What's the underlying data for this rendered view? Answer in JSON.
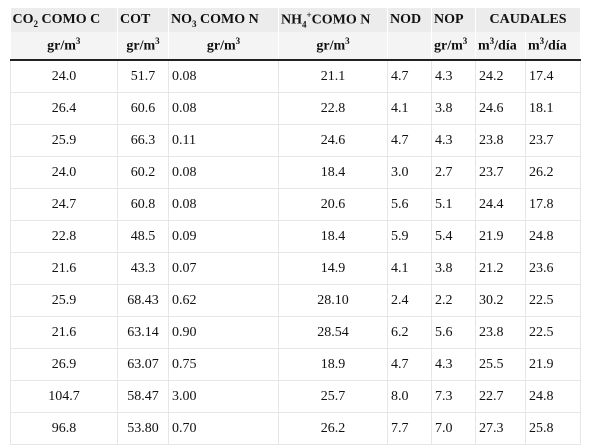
{
  "header": {
    "row1": {
      "co2_prefix": "CO",
      "co2_sub": "2",
      "co2_suffix": " COMO C",
      "cot": "COT",
      "no3_prefix": "NO",
      "no3_sub": "3",
      "no3_suffix": " COMO N",
      "nh4_prefix": "NH",
      "nh4_sub": "4",
      "nh4_sup": "+",
      "nh4_suffix": "COMO N",
      "nod": "NOD",
      "nop": "NOP",
      "caudales": "CAUDALES"
    },
    "row2": {
      "gr_m": "gr/m",
      "cube": "3",
      "m": "m",
      "dia": "/día"
    }
  },
  "rows": [
    [
      "24.0",
      "51.7",
      "0.08",
      "21.1",
      "4.7",
      "4.3",
      "24.2",
      "17.4"
    ],
    [
      "26.4",
      "60.6",
      "0.08",
      "22.8",
      "4.1",
      "3.8",
      "24.6",
      "18.1"
    ],
    [
      "25.9",
      "66.3",
      "0.11",
      "24.6",
      "4.7",
      "4.3",
      "23.8",
      "23.7"
    ],
    [
      "24.0",
      "60.2",
      "0.08",
      "18.4",
      "3.0",
      "2.7",
      "23.7",
      "26.2"
    ],
    [
      "24.7",
      "60.8",
      "0.08",
      "20.6",
      "5.6",
      "5.1",
      "24.4",
      "17.8"
    ],
    [
      "22.8",
      "48.5",
      "0.09",
      "18.4",
      "5.9",
      "5.4",
      "21.9",
      "24.8"
    ],
    [
      "21.6",
      "43.3",
      "0.07",
      "14.9",
      "4.1",
      "3.8",
      "21.2",
      "23.6"
    ],
    [
      "25.9",
      "68.43",
      "0.62",
      "28.10",
      "2.4",
      "2.2",
      "30.2",
      "22.5"
    ],
    [
      "21.6",
      "63.14",
      "0.90",
      "28.54",
      "6.2",
      "5.6",
      "23.8",
      "22.5"
    ],
    [
      "26.9",
      "63.07",
      "0.75",
      "18.9",
      "4.7",
      "4.3",
      "25.5",
      "21.9"
    ],
    [
      "104.7",
      "58.47",
      "3.00",
      "25.7",
      "8.0",
      "7.3",
      "22.7",
      "24.8"
    ],
    [
      "96.8",
      "53.80",
      "0.70",
      "26.2",
      "7.7",
      "7.0",
      "27.3",
      "25.8"
    ]
  ]
}
